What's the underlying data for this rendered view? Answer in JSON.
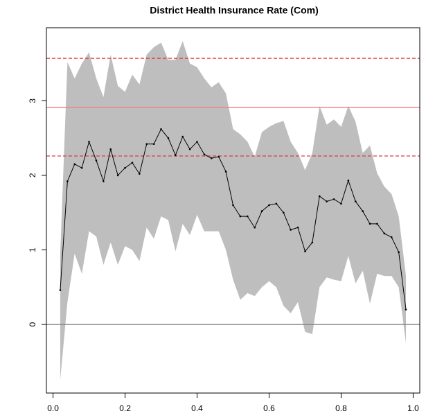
{
  "chart_data": {
    "type": "line",
    "title": "District Health Insurance Rate (Com)",
    "x": [
      0.02,
      0.04,
      0.06,
      0.08,
      0.1,
      0.12,
      0.14,
      0.16,
      0.18,
      0.2,
      0.22,
      0.24,
      0.26,
      0.28,
      0.3,
      0.32,
      0.34,
      0.36,
      0.38,
      0.4,
      0.42,
      0.44,
      0.46,
      0.48,
      0.5,
      0.52,
      0.54,
      0.56,
      0.58,
      0.6,
      0.62,
      0.64,
      0.66,
      0.68,
      0.7,
      0.72,
      0.74,
      0.76,
      0.78,
      0.8,
      0.82,
      0.84,
      0.86,
      0.88,
      0.9,
      0.92,
      0.94,
      0.96,
      0.98
    ],
    "values": [
      0.46,
      1.92,
      2.15,
      2.1,
      2.45,
      2.2,
      1.92,
      2.35,
      2.0,
      2.1,
      2.17,
      2.02,
      2.42,
      2.42,
      2.62,
      2.5,
      2.27,
      2.52,
      2.35,
      2.45,
      2.28,
      2.23,
      2.25,
      2.05,
      1.6,
      1.45,
      1.45,
      1.3,
      1.52,
      1.6,
      1.62,
      1.5,
      1.27,
      1.3,
      0.98,
      1.1,
      1.72,
      1.65,
      1.68,
      1.62,
      1.93,
      1.65,
      1.52,
      1.35,
      1.35,
      1.22,
      1.17,
      0.97,
      0.2
    ],
    "upper": [
      0.95,
      3.52,
      3.3,
      3.5,
      3.65,
      3.3,
      3.05,
      3.62,
      3.2,
      3.12,
      3.35,
      3.22,
      3.62,
      3.72,
      3.78,
      3.55,
      3.55,
      3.8,
      3.5,
      3.45,
      3.3,
      3.18,
      3.25,
      3.1,
      2.62,
      2.55,
      2.45,
      2.25,
      2.58,
      2.65,
      2.7,
      2.73,
      2.45,
      2.3,
      2.07,
      2.3,
      2.93,
      2.68,
      2.75,
      2.65,
      2.93,
      2.72,
      2.3,
      2.4,
      2.03,
      1.85,
      1.75,
      1.45,
      0.65
    ],
    "lower": [
      -0.74,
      0.3,
      0.95,
      0.68,
      1.25,
      1.18,
      0.8,
      1.1,
      0.8,
      1.05,
      1.0,
      0.85,
      1.3,
      1.15,
      1.45,
      1.4,
      0.98,
      1.35,
      1.2,
      1.47,
      1.25,
      1.25,
      1.25,
      1.0,
      0.6,
      0.33,
      0.42,
      0.38,
      0.5,
      0.58,
      0.5,
      0.25,
      0.15,
      0.3,
      -0.1,
      -0.13,
      0.5,
      0.63,
      0.6,
      0.58,
      0.92,
      0.55,
      0.72,
      0.28,
      0.68,
      0.65,
      0.65,
      0.5,
      -0.25
    ],
    "color": "#000000",
    "band_color": "#bebebe",
    "reference_lines": [
      {
        "value": 0,
        "color": "#808080",
        "style": "solid"
      },
      {
        "value": 2.91,
        "color": "#f08080",
        "style": "solid"
      },
      {
        "value": 3.57,
        "color": "#dc3c3c",
        "style": "dashed"
      },
      {
        "value": 2.26,
        "color": "#dc3c3c",
        "style": "dashed"
      }
    ],
    "xlim": [
      -0.0184,
      1.0184
    ],
    "ylim": [
      -0.92,
      3.98
    ],
    "xticks": [
      {
        "value": 0,
        "label": "0.0"
      },
      0.2,
      0.4,
      0.6,
      0.8,
      {
        "value": 1,
        "label": "1.0"
      }
    ],
    "yticks": [
      0,
      1,
      2,
      3
    ]
  }
}
